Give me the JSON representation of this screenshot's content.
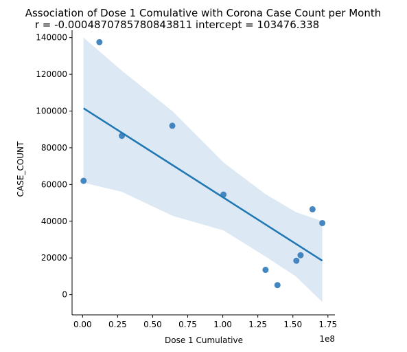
{
  "chart_data": {
    "type": "scatter",
    "title": "Association of Dose 1 Comulative with Corona Case Count per Month",
    "subtitle": "r = -0.0004870785780843811 intercept = 103476.338",
    "xlabel": "Dose 1 Cumulative",
    "ylabel": "CASE_COUNT",
    "x_offset_text": "1e8",
    "xlim": [
      -7500000,
      180000000
    ],
    "ylim": [
      -11000,
      144000
    ],
    "x_ticks": [
      0,
      25000000,
      50000000,
      75000000,
      100000000,
      125000000,
      150000000,
      175000000
    ],
    "x_tick_labels": [
      "0.00",
      "0.25",
      "0.50",
      "0.75",
      "1.00",
      "1.25",
      "1.50",
      "1.75"
    ],
    "y_ticks": [
      0,
      20000,
      40000,
      60000,
      80000,
      100000,
      120000,
      140000
    ],
    "y_tick_labels": [
      "0",
      "20000",
      "40000",
      "60000",
      "80000",
      "100000",
      "120000",
      "140000"
    ],
    "points": [
      {
        "x": 700000,
        "y": 62000
      },
      {
        "x": 12000000,
        "y": 137500
      },
      {
        "x": 28000000,
        "y": 86500
      },
      {
        "x": 64000000,
        "y": 92000
      },
      {
        "x": 100500000,
        "y": 54500
      },
      {
        "x": 130500000,
        "y": 13500
      },
      {
        "x": 139000000,
        "y": 5200
      },
      {
        "x": 152500000,
        "y": 18500
      },
      {
        "x": 155500000,
        "y": 21500
      },
      {
        "x": 164000000,
        "y": 46500
      },
      {
        "x": 171000000,
        "y": 39000
      }
    ],
    "regression_line": {
      "x": [
        700000,
        171000000
      ],
      "y": [
        101500,
        18500
      ]
    },
    "confidence_band": {
      "x": [
        700000,
        28000000,
        64000000,
        100500000,
        130000000,
        152000000,
        171000000
      ],
      "upper": [
        140000,
        122000,
        100000,
        72000,
        55000,
        45000,
        40000
      ],
      "lower": [
        61000,
        56000,
        43000,
        35000,
        21000,
        10000,
        -4000
      ]
    },
    "grid": false,
    "legend": "none",
    "colors": {
      "points": "#3a7fbd",
      "line": "#1f77b4",
      "band": "#dce8f3"
    }
  }
}
